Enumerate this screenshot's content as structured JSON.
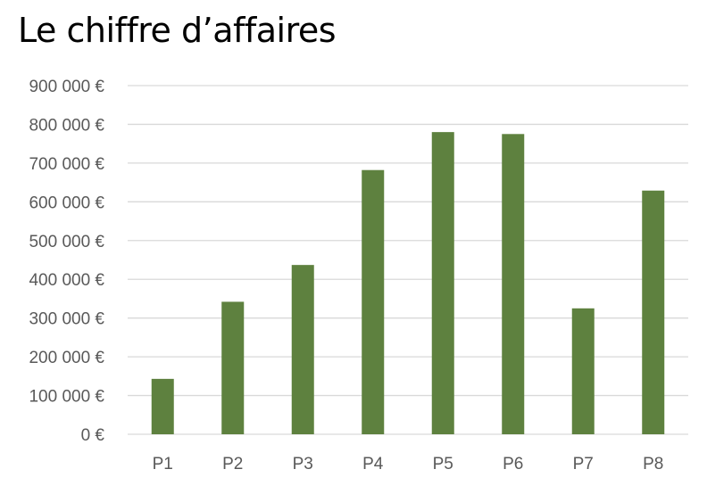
{
  "chart_data": {
    "type": "bar",
    "title": "Le chiffre d’affaires",
    "xlabel": "",
    "ylabel": "",
    "categories": [
      "P1",
      "P2",
      "P3",
      "P4",
      "P5",
      "P6",
      "P7",
      "P8"
    ],
    "values": [
      143000,
      342000,
      437000,
      682000,
      780000,
      775000,
      325000,
      629000
    ],
    "ylim": [
      0,
      900000
    ],
    "yticks": [
      0,
      100000,
      200000,
      300000,
      400000,
      500000,
      600000,
      700000,
      800000,
      900000
    ],
    "ytick_labels": [
      "0 €",
      "100 000 €",
      "200 000 €",
      "300 000 €",
      "400 000 €",
      "500 000 €",
      "600 000 €",
      "700 000 €",
      "800 000 €",
      "900 000 €"
    ],
    "grid": true,
    "legend": "none",
    "bar_color": "#5e813f"
  }
}
